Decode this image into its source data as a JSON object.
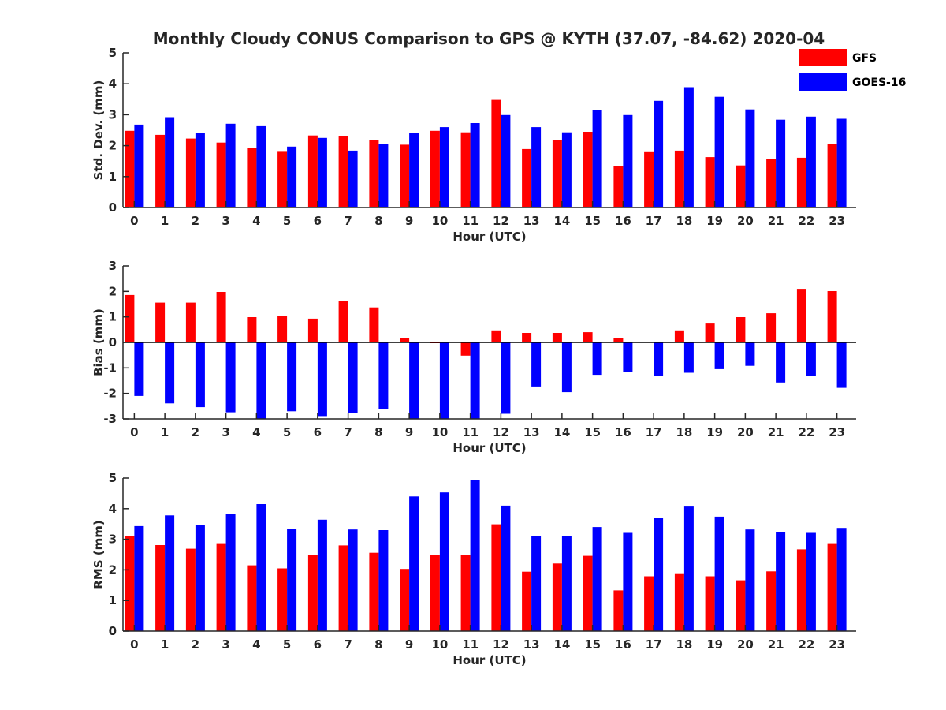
{
  "title": "Monthly Cloudy CONUS Comparison to GPS @ KYTH (37.07, -84.62) 2020-04",
  "legend": {
    "placement": "top-right",
    "items": [
      {
        "label": "GFS",
        "color": "#ff0000"
      },
      {
        "label": "GOES-16",
        "color": "#0000ff"
      }
    ]
  },
  "chart_data": [
    {
      "type": "bar",
      "xlabel": "Hour (UTC)",
      "ylabel": "Std. Dev. (mm)",
      "ylim": [
        0,
        5
      ],
      "yticks": [
        0,
        1,
        2,
        3,
        4,
        5
      ],
      "categories": [
        "0",
        "1",
        "2",
        "3",
        "4",
        "5",
        "6",
        "7",
        "8",
        "9",
        "10",
        "11",
        "12",
        "13",
        "14",
        "15",
        "16",
        "17",
        "18",
        "19",
        "20",
        "21",
        "22",
        "23"
      ],
      "series": [
        {
          "name": "GFS",
          "color": "#ff0000",
          "values": [
            2.48,
            2.35,
            2.23,
            2.1,
            1.92,
            1.8,
            2.33,
            2.3,
            2.18,
            2.03,
            2.48,
            2.43,
            3.48,
            1.89,
            2.18,
            2.45,
            1.33,
            1.79,
            1.84,
            1.63,
            1.36,
            1.58,
            1.61,
            2.05
          ]
        },
        {
          "name": "GOES-16",
          "color": "#0000ff",
          "values": [
            2.68,
            2.92,
            2.41,
            2.71,
            2.63,
            1.97,
            2.25,
            1.84,
            2.04,
            2.41,
            2.6,
            2.73,
            2.99,
            2.6,
            2.43,
            3.14,
            2.99,
            3.45,
            3.89,
            3.58,
            3.17,
            2.84,
            2.94,
            2.87
          ]
        }
      ]
    },
    {
      "type": "bar",
      "xlabel": "Hour (UTC)",
      "ylabel": "Bias (mm)",
      "ylim": [
        -3,
        3
      ],
      "yticks": [
        -3,
        -2,
        -1,
        0,
        1,
        2,
        3
      ],
      "categories": [
        "0",
        "1",
        "2",
        "3",
        "4",
        "5",
        "6",
        "7",
        "8",
        "9",
        "10",
        "11",
        "12",
        "13",
        "14",
        "15",
        "16",
        "17",
        "18",
        "19",
        "20",
        "21",
        "22",
        "23"
      ],
      "series": [
        {
          "name": "GFS",
          "color": "#ff0000",
          "values": [
            1.86,
            1.56,
            1.56,
            1.98,
            0.99,
            1.05,
            0.93,
            1.64,
            1.37,
            0.18,
            -0.03,
            -0.52,
            0.47,
            0.37,
            0.37,
            0.4,
            0.18,
            0,
            0.47,
            0.74,
            0.99,
            1.14,
            2.1,
            2.01
          ]
        },
        {
          "name": "GOES-16",
          "color": "#0000ff",
          "values": [
            -2.1,
            -2.39,
            -2.54,
            -2.74,
            -3.0,
            -2.7,
            -2.89,
            -2.77,
            -2.6,
            -3.0,
            -3.0,
            -3.0,
            -2.8,
            -1.73,
            -1.95,
            -1.27,
            -1.15,
            -1.33,
            -1.19,
            -1.05,
            -0.92,
            -1.57,
            -1.3,
            -1.78
          ]
        }
      ]
    },
    {
      "type": "bar",
      "xlabel": "Hour (UTC)",
      "ylabel": "RMS (mm)",
      "ylim": [
        0,
        5
      ],
      "yticks": [
        0,
        1,
        2,
        3,
        4,
        5
      ],
      "categories": [
        "0",
        "1",
        "2",
        "3",
        "4",
        "5",
        "6",
        "7",
        "8",
        "9",
        "10",
        "11",
        "12",
        "13",
        "14",
        "15",
        "16",
        "17",
        "18",
        "19",
        "20",
        "21",
        "22",
        "23"
      ],
      "series": [
        {
          "name": "GFS",
          "color": "#ff0000",
          "values": [
            3.1,
            2.81,
            2.69,
            2.87,
            2.15,
            2.05,
            2.48,
            2.8,
            2.56,
            2.03,
            2.49,
            2.49,
            3.49,
            1.94,
            2.21,
            2.46,
            1.33,
            1.79,
            1.89,
            1.79,
            1.66,
            1.95,
            2.67,
            2.87
          ]
        },
        {
          "name": "GOES-16",
          "color": "#0000ff",
          "values": [
            3.43,
            3.78,
            3.48,
            3.84,
            4.15,
            3.35,
            3.64,
            3.32,
            3.3,
            4.4,
            4.53,
            4.93,
            4.1,
            3.1,
            3.1,
            3.4,
            3.21,
            3.71,
            4.07,
            3.74,
            3.32,
            3.24,
            3.21,
            3.37
          ]
        }
      ]
    }
  ]
}
